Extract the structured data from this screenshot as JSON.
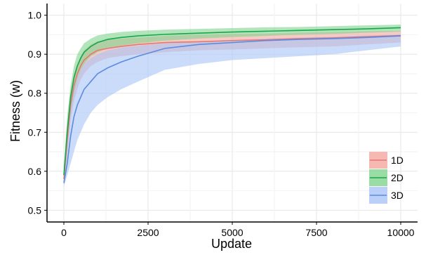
{
  "chart_data": {
    "type": "line",
    "xlabel": "Update",
    "ylabel": "Fitness (w)",
    "xlim": [
      -500,
      10500
    ],
    "ylim": [
      0.47,
      1.03
    ],
    "xticks": [
      0,
      2500,
      5000,
      7500,
      10000
    ],
    "xtick_labels": [
      "0",
      "2500",
      "5000",
      "7500",
      "10000"
    ],
    "yticks": [
      0.5,
      0.6,
      0.7,
      0.8,
      0.9,
      1.0
    ],
    "ytick_labels": [
      "0.5",
      "0.6",
      "0.7",
      "0.8",
      "0.9",
      "1.0"
    ],
    "grid": true,
    "legend_position": "bottom-right",
    "series": [
      {
        "name": "1D",
        "color": "#E8776E",
        "fill_color": "#F4A6A0",
        "x": [
          0,
          100,
          200,
          300,
          400,
          500,
          600,
          800,
          1000,
          1300,
          1700,
          2200,
          3000,
          4000,
          5000,
          6000,
          7000,
          8000,
          9000,
          10000
        ],
        "mean": [
          0.58,
          0.68,
          0.77,
          0.82,
          0.85,
          0.87,
          0.885,
          0.9,
          0.91,
          0.915,
          0.92,
          0.925,
          0.93,
          0.932,
          0.935,
          0.937,
          0.94,
          0.942,
          0.945,
          0.948
        ],
        "lower": [
          0.57,
          0.64,
          0.73,
          0.78,
          0.81,
          0.835,
          0.85,
          0.87,
          0.88,
          0.89,
          0.895,
          0.9,
          0.905,
          0.91,
          0.912,
          0.915,
          0.918,
          0.92,
          0.925,
          0.93
        ],
        "upper": [
          0.6,
          0.72,
          0.8,
          0.85,
          0.875,
          0.895,
          0.91,
          0.925,
          0.933,
          0.937,
          0.94,
          0.943,
          0.947,
          0.95,
          0.952,
          0.953,
          0.955,
          0.957,
          0.959,
          0.96
        ]
      },
      {
        "name": "2D",
        "color": "#19A64A",
        "fill_color": "#7FD48E",
        "x": [
          0,
          100,
          200,
          300,
          400,
          500,
          600,
          800,
          1000,
          1300,
          1700,
          2200,
          3000,
          4000,
          5000,
          6000,
          7000,
          8000,
          9000,
          10000
        ],
        "mean": [
          0.59,
          0.7,
          0.79,
          0.84,
          0.87,
          0.89,
          0.905,
          0.92,
          0.93,
          0.938,
          0.943,
          0.947,
          0.951,
          0.954,
          0.957,
          0.959,
          0.961,
          0.963,
          0.965,
          0.968
        ],
        "lower": [
          0.58,
          0.67,
          0.75,
          0.8,
          0.835,
          0.86,
          0.875,
          0.895,
          0.905,
          0.915,
          0.922,
          0.928,
          0.935,
          0.94,
          0.944,
          0.947,
          0.95,
          0.952,
          0.955,
          0.958
        ],
        "upper": [
          0.61,
          0.74,
          0.82,
          0.87,
          0.9,
          0.915,
          0.928,
          0.94,
          0.948,
          0.953,
          0.957,
          0.96,
          0.963,
          0.965,
          0.967,
          0.969,
          0.97,
          0.972,
          0.974,
          0.976
        ]
      },
      {
        "name": "3D",
        "color": "#5B8BE0",
        "fill_color": "#A9C4F7",
        "x": [
          0,
          100,
          200,
          300,
          400,
          500,
          600,
          800,
          1000,
          1300,
          1700,
          2200,
          3000,
          4000,
          5000,
          6000,
          7000,
          8000,
          9000,
          10000
        ],
        "mean": [
          0.57,
          0.62,
          0.69,
          0.74,
          0.77,
          0.79,
          0.81,
          0.83,
          0.85,
          0.865,
          0.88,
          0.895,
          0.915,
          0.925,
          0.93,
          0.935,
          0.938,
          0.94,
          0.943,
          0.947
        ],
        "lower": [
          0.56,
          0.59,
          0.62,
          0.65,
          0.68,
          0.7,
          0.72,
          0.75,
          0.77,
          0.79,
          0.81,
          0.83,
          0.86,
          0.875,
          0.885,
          0.89,
          0.895,
          0.9,
          0.91,
          0.92
        ],
        "upper": [
          0.59,
          0.68,
          0.76,
          0.81,
          0.84,
          0.86,
          0.875,
          0.89,
          0.9,
          0.91,
          0.917,
          0.922,
          0.928,
          0.933,
          0.937,
          0.94,
          0.943,
          0.945,
          0.948,
          0.95
        ]
      }
    ]
  }
}
